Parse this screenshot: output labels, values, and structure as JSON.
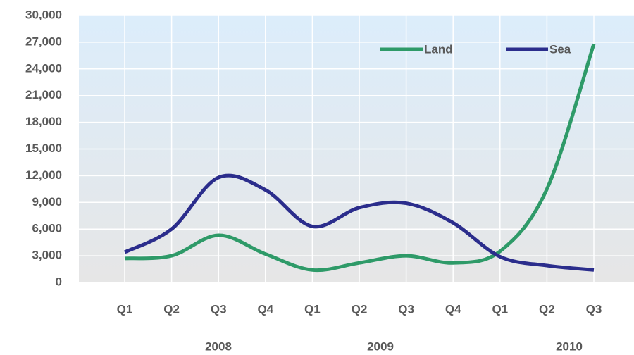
{
  "chart_data": {
    "type": "line",
    "categories": [
      "Q1",
      "Q2",
      "Q3",
      "Q4",
      "Q1",
      "Q2",
      "Q3",
      "Q4",
      "Q1",
      "Q2",
      "Q3"
    ],
    "groups": [
      {
        "name": "2008",
        "categories": [
          0,
          3
        ]
      },
      {
        "name": "2009",
        "categories": [
          4,
          7
        ]
      },
      {
        "name": "2010",
        "categories": [
          8,
          10
        ]
      }
    ],
    "series": [
      {
        "name": "Land",
        "color": "#2e9a68",
        "values": [
          2700,
          3000,
          5300,
          3200,
          1400,
          2200,
          3000,
          2200,
          3500,
          10500,
          26800
        ]
      },
      {
        "name": "Sea",
        "color": "#2b2d8c",
        "values": [
          3400,
          6000,
          11800,
          10400,
          6300,
          8400,
          8900,
          6700,
          2900,
          1900,
          1400
        ]
      }
    ],
    "ylim": [
      0,
      30000
    ],
    "yticks": [
      0,
      {
        "value": 3000,
        "label": "3,000"
      },
      {
        "value": 6000,
        "label": "6,000"
      },
      {
        "value": 9000,
        "label": "9,000"
      },
      {
        "value": 12000,
        "label": "12,000"
      },
      {
        "value": 15000,
        "label": "15,000"
      },
      {
        "value": 18000,
        "label": "18,000"
      },
      {
        "value": 21000,
        "label": "21,000"
      },
      {
        "value": 24000,
        "label": "24,000"
      },
      {
        "value": 27000,
        "label": "27,000"
      },
      {
        "value": 30000,
        "label": "30,000"
      }
    ],
    "grid": true,
    "smooth": true,
    "legend": "top-right"
  }
}
